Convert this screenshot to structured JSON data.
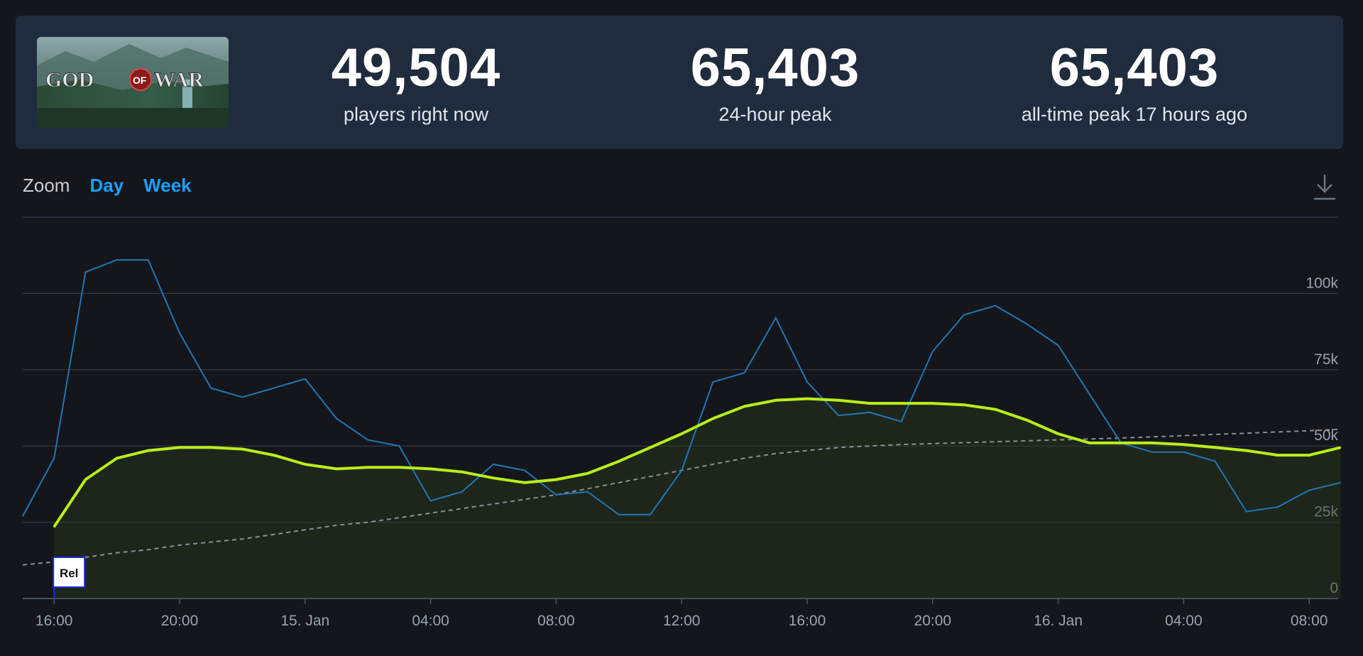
{
  "game": {
    "logo_text": "GOD OF WAR",
    "logo_badge": "OF"
  },
  "stats": [
    {
      "value": "49,504",
      "label": "players right now"
    },
    {
      "value": "65,403",
      "label": "24-hour peak"
    },
    {
      "value": "65,403",
      "label": "all-time peak 17 hours ago"
    }
  ],
  "zoom": {
    "label": "Zoom",
    "options": [
      "Day",
      "Week"
    ]
  },
  "icons": {
    "download": "download-icon"
  },
  "colors": {
    "players_line": "#1f77b4",
    "average_line": "#b8ee1a",
    "trend_line": "#8a8f96",
    "release_marker": "#1b2bd9",
    "grid": "#3a4250"
  },
  "chart_data": {
    "type": "line",
    "title": "",
    "xlabel": "",
    "ylabel": "",
    "ylim": [
      0,
      125000
    ],
    "yticks": [
      0,
      25000,
      50000,
      75000,
      100000
    ],
    "ytick_labels": [
      "0",
      "25k",
      "50k",
      "75k",
      "100k"
    ],
    "x_start": "14 Jan 15:00",
    "x_step": "1 hour",
    "x_ticks": [
      {
        "label": "16:00",
        "index": 1
      },
      {
        "label": "20:00",
        "index": 5
      },
      {
        "label": "15. Jan",
        "index": 9
      },
      {
        "label": "04:00",
        "index": 13
      },
      {
        "label": "08:00",
        "index": 17
      },
      {
        "label": "12:00",
        "index": 21
      },
      {
        "label": "16:00",
        "index": 25
      },
      {
        "label": "20:00",
        "index": 29
      },
      {
        "label": "16. Jan",
        "index": 33
      },
      {
        "label": "04:00",
        "index": 37
      },
      {
        "label": "08:00",
        "index": 41
      }
    ],
    "series": [
      {
        "values": [
          27000,
          46000,
          107000,
          111000,
          111000,
          87000,
          69000,
          66000,
          69000,
          72000,
          59000,
          52000,
          50000,
          32000,
          35000,
          44000,
          42000,
          34000,
          35000,
          27500,
          27500,
          42000,
          71000,
          74000,
          92000,
          71000,
          60000,
          61000,
          58000,
          81000,
          93000,
          96000,
          90000,
          83000,
          67000,
          51000,
          48000,
          48000,
          45000,
          28500,
          30000,
          35500,
          38000
        ]
      },
      {
        "values": [
          null,
          23500,
          39000,
          46000,
          48500,
          49500,
          49500,
          49000,
          47000,
          44000,
          42500,
          43000,
          43000,
          42500,
          41500,
          39500,
          38000,
          39000,
          41000,
          45000,
          49500,
          54000,
          59000,
          63000,
          65000,
          65500,
          65000,
          64000,
          64000,
          64000,
          63500,
          62000,
          58500,
          54000,
          51000,
          51000,
          51000,
          50500,
          49500,
          48500,
          47000,
          47000,
          49504
        ]
      },
      {
        "style": "dashed",
        "values": [
          11000,
          12000,
          13500,
          15000,
          16000,
          17500,
          18500,
          19500,
          21000,
          22500,
          24000,
          25000,
          26500,
          28000,
          29500,
          31000,
          32500,
          34000,
          36000,
          38000,
          40000,
          42000,
          44000,
          46000,
          47500,
          48500,
          49500,
          50000,
          50500,
          50800,
          51100,
          51400,
          51700,
          52000,
          52300,
          52600,
          53000,
          53400,
          53800,
          54200,
          54600,
          55000,
          55500
        ]
      }
    ],
    "annotations": [
      {
        "label": "Rel",
        "x_index": 1
      }
    ],
    "grid": true,
    "legend": "none"
  }
}
